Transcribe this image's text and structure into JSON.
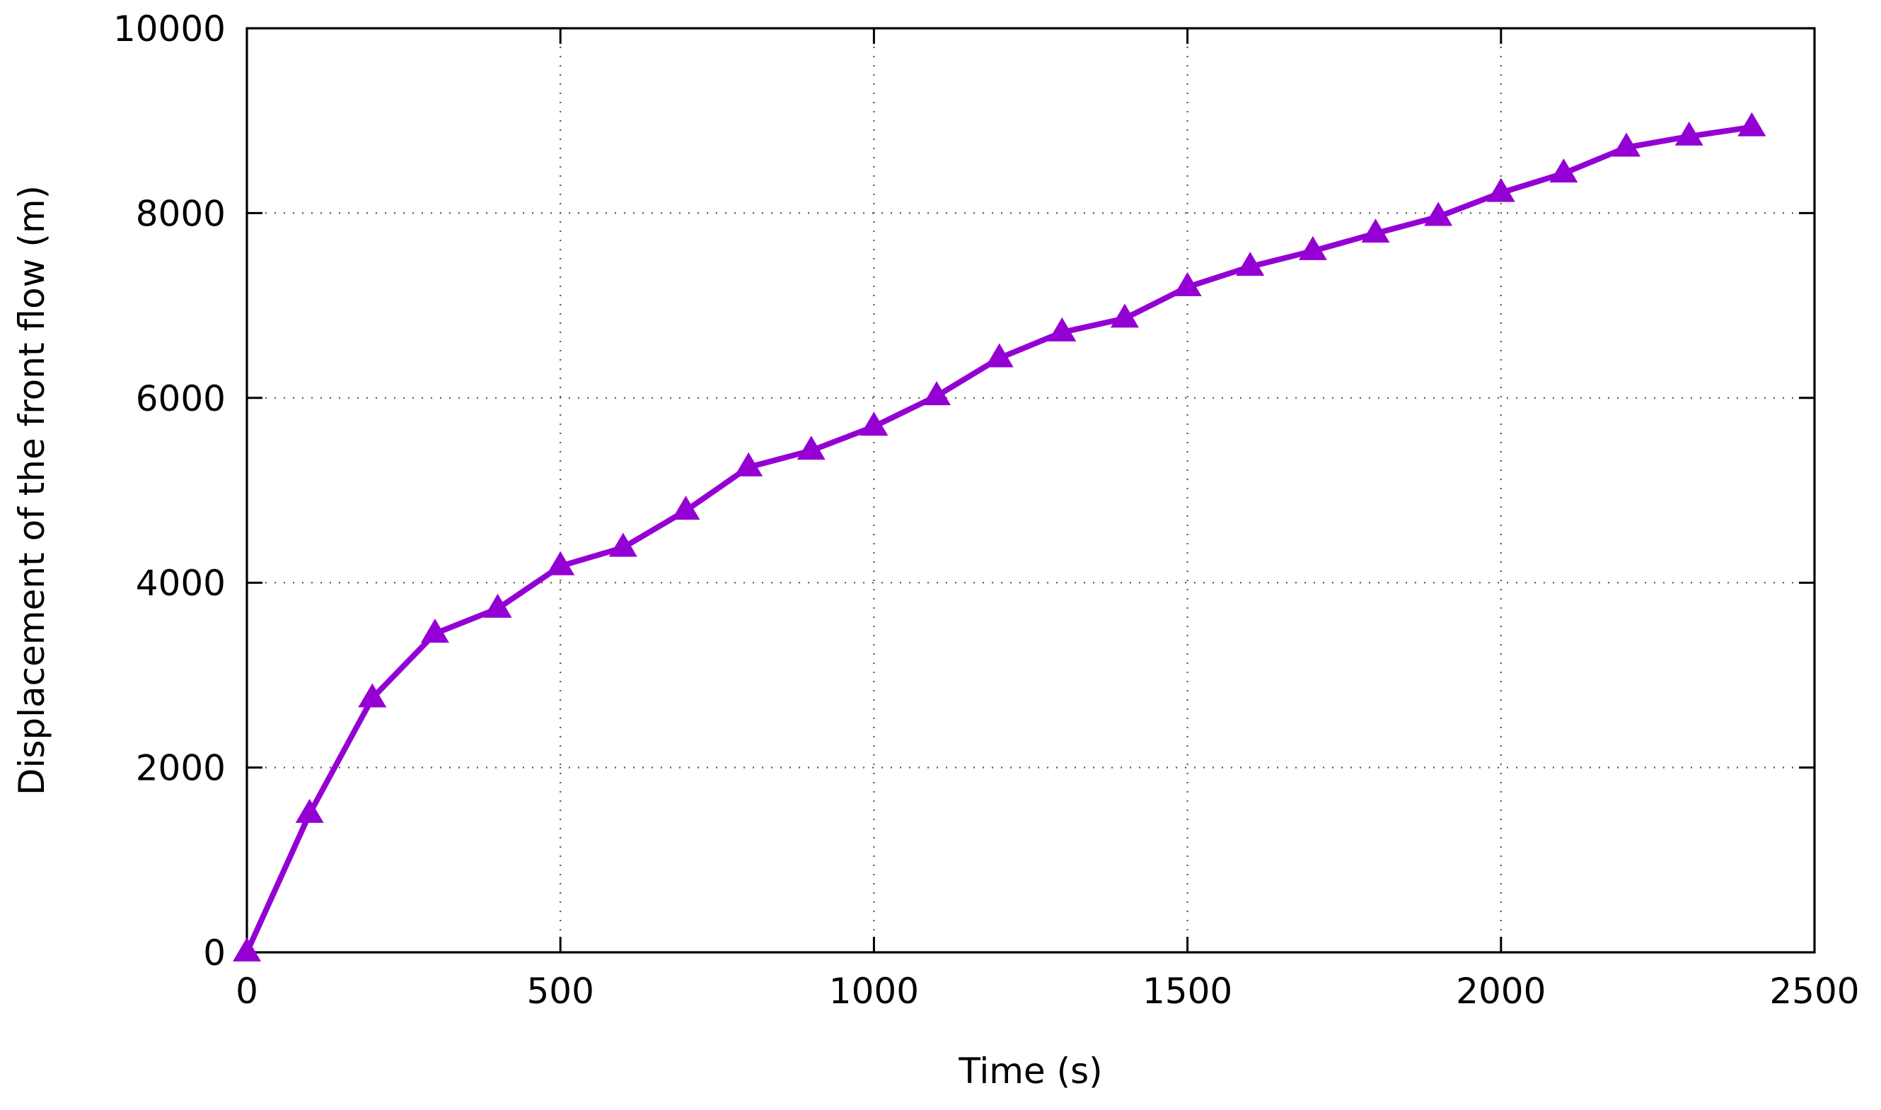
{
  "chart_data": {
    "type": "line",
    "xlabel": "Time (s)",
    "ylabel": "Displacement of the front flow (m)",
    "xlim": [
      0,
      2500
    ],
    "ylim": [
      0,
      10000
    ],
    "xticks": [
      "0",
      "500",
      "1000",
      "1500",
      "2000",
      "2500"
    ],
    "yticks": [
      "0",
      "2000",
      "4000",
      "6000",
      "8000",
      "10000"
    ],
    "grid": true,
    "series": [
      {
        "color": "#9400D3",
        "marker": "triangle",
        "x": [
          0,
          100,
          200,
          300,
          400,
          500,
          600,
          700,
          800,
          900,
          1000,
          1100,
          1200,
          1300,
          1400,
          1500,
          1600,
          1700,
          1800,
          1900,
          2000,
          2100,
          2200,
          2300,
          2400
        ],
        "y": [
          0,
          1500,
          2750,
          3450,
          3720,
          4180,
          4380,
          4780,
          5250,
          5430,
          5690,
          6020,
          6430,
          6710,
          6860,
          7200,
          7420,
          7590,
          7780,
          7960,
          8220,
          8430,
          8710,
          8830,
          8930
        ]
      }
    ]
  }
}
